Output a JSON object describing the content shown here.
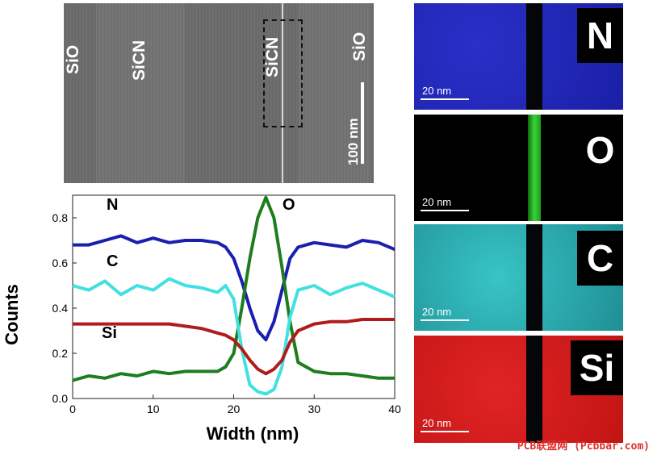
{
  "tem_image": {
    "layer_labels": [
      "SiO",
      "SiCN",
      "SiCN",
      "SiO"
    ],
    "scale_label": "100 nm"
  },
  "maps": [
    {
      "element": "N",
      "scale_label": "20 nm",
      "color": "#1a1fb4"
    },
    {
      "element": "O",
      "scale_label": "20 nm",
      "color": "#1cc41c"
    },
    {
      "element": "C",
      "scale_label": "20 nm",
      "color": "#2fb5b9"
    },
    {
      "element": "Si",
      "scale_label": "20 nm",
      "color": "#d81c1c"
    }
  ],
  "watermark": "PCB联盟网 (Pcbbar.com)",
  "chart_data": {
    "type": "line",
    "xlabel": "Width (nm)",
    "ylabel": "Counts",
    "xlim": [
      0,
      40
    ],
    "ylim": [
      0,
      0.9
    ],
    "xticks": [
      "0",
      "10",
      "20",
      "30",
      "40"
    ],
    "yticks": [
      "0.0",
      "0.2",
      "0.4",
      "0.6",
      "0.8"
    ],
    "grid": false,
    "x": [
      0,
      2,
      4,
      6,
      8,
      10,
      12,
      14,
      16,
      18,
      19,
      20,
      21,
      22,
      23,
      24,
      25,
      26,
      27,
      28,
      30,
      32,
      34,
      36,
      38,
      40
    ],
    "series": [
      {
        "name": "N",
        "color": "#1a1fb0",
        "values": [
          0.68,
          0.68,
          0.7,
          0.72,
          0.69,
          0.71,
          0.69,
          0.7,
          0.7,
          0.69,
          0.67,
          0.62,
          0.52,
          0.4,
          0.3,
          0.26,
          0.34,
          0.48,
          0.62,
          0.67,
          0.69,
          0.68,
          0.67,
          0.7,
          0.69,
          0.66
        ]
      },
      {
        "name": "O",
        "color": "#1e7d1e",
        "values": [
          0.08,
          0.1,
          0.09,
          0.11,
          0.1,
          0.12,
          0.11,
          0.12,
          0.12,
          0.12,
          0.14,
          0.2,
          0.4,
          0.62,
          0.8,
          0.89,
          0.8,
          0.58,
          0.34,
          0.16,
          0.12,
          0.11,
          0.11,
          0.1,
          0.09,
          0.09
        ]
      },
      {
        "name": "C",
        "color": "#42e0e0",
        "values": [
          0.5,
          0.48,
          0.52,
          0.46,
          0.5,
          0.48,
          0.53,
          0.5,
          0.49,
          0.47,
          0.5,
          0.44,
          0.22,
          0.06,
          0.03,
          0.02,
          0.04,
          0.14,
          0.36,
          0.48,
          0.5,
          0.46,
          0.49,
          0.51,
          0.48,
          0.45
        ]
      },
      {
        "name": "Si",
        "color": "#b01c1c",
        "values": [
          0.33,
          0.33,
          0.33,
          0.33,
          0.33,
          0.33,
          0.33,
          0.32,
          0.31,
          0.29,
          0.28,
          0.26,
          0.22,
          0.17,
          0.13,
          0.11,
          0.13,
          0.17,
          0.25,
          0.3,
          0.33,
          0.34,
          0.34,
          0.35,
          0.35,
          0.35
        ]
      }
    ],
    "series_labels": [
      "N",
      "O",
      "C",
      "Si"
    ]
  }
}
